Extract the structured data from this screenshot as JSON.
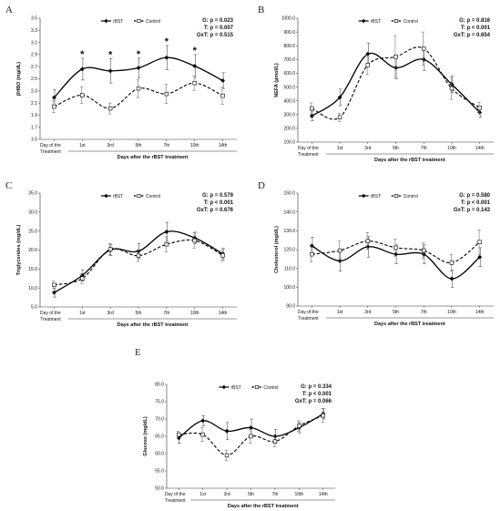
{
  "chart_data": [
    {
      "letter": "A",
      "type": "line",
      "ylabel": "βHBO (mg/dL)",
      "xlabel": "Days after the rBST treatment",
      "categories": [
        "Day of the Treatment",
        "1st",
        "3rd",
        "5th",
        "7th",
        "10th",
        "14th"
      ],
      "ylim": [
        1.5,
        3.5
      ],
      "yticks": [
        1.5,
        1.7,
        1.9,
        2.1,
        2.3,
        2.5,
        2.7,
        2.9,
        3.1,
        3.3,
        3.5
      ],
      "ydecimals": 1,
      "stats": [
        "G: p = 0.023",
        "T: p = 0.007",
        "GxT: p = 0.515"
      ],
      "series": [
        {
          "name": "rBST",
          "values": [
            2.19,
            2.66,
            2.63,
            2.68,
            2.85,
            2.71,
            2.47
          ],
          "errors": [
            0.13,
            0.18,
            0.2,
            0.16,
            0.2,
            0.19,
            0.13
          ]
        },
        {
          "name": "Control",
          "values": [
            2.04,
            2.23,
            2.01,
            2.34,
            2.25,
            2.43,
            2.22
          ],
          "errors": [
            0.1,
            0.14,
            0.09,
            0.15,
            0.16,
            0.12,
            0.14
          ]
        }
      ],
      "annotations": [
        {
          "index": 1,
          "text": "*"
        },
        {
          "index": 2,
          "text": "*"
        },
        {
          "index": 3,
          "text": "*"
        },
        {
          "index": 4,
          "text": "*"
        },
        {
          "index": 5,
          "text": "*"
        }
      ]
    },
    {
      "letter": "B",
      "type": "line",
      "ylabel": "NEFA (µmol/L)",
      "xlabel": "Days after the rBST treatment",
      "categories": [
        "Day of the Treatment",
        "1st",
        "3rd",
        "5th",
        "7th",
        "10th",
        "14th"
      ],
      "ylim": [
        100,
        1000
      ],
      "yticks": [
        100,
        200,
        300,
        400,
        500,
        600,
        700,
        800,
        900,
        1000
      ],
      "ydecimals": 1,
      "stats": [
        "G: p = 0.816",
        "T: p < 0.001",
        "GxT: p = 0.654"
      ],
      "series": [
        {
          "name": "rBST",
          "values": [
            290,
            425,
            740,
            640,
            700,
            520,
            315
          ],
          "errors": [
            35,
            60,
            80,
            80,
            80,
            60,
            35
          ]
        },
        {
          "name": "Control",
          "values": [
            345,
            280,
            660,
            720,
            780,
            490,
            350
          ],
          "errors": [
            40,
            30,
            70,
            150,
            120,
            80,
            40
          ]
        }
      ],
      "annotations": []
    },
    {
      "letter": "C",
      "type": "line",
      "ylabel": "Triglycerides (mg/dL)",
      "xlabel": "Days after the rBST treatment",
      "categories": [
        "Day of the Treatment",
        "1st",
        "3rd",
        "5th",
        "7th",
        "10th",
        "14th"
      ],
      "ylim": [
        5,
        35
      ],
      "yticks": [
        5,
        10,
        15,
        20,
        25,
        30,
        35
      ],
      "ydecimals": 1,
      "stats": [
        "G: p = 0.579",
        "T: p < 0.001",
        "GxT: p = 0.676"
      ],
      "series": [
        {
          "name": "rBST",
          "values": [
            8.8,
            13.3,
            20.0,
            19.7,
            24.8,
            23.2,
            19.0
          ],
          "errors": [
            1.2,
            1.5,
            1.5,
            2.0,
            2.5,
            1.5,
            1.5
          ]
        },
        {
          "name": "Control",
          "values": [
            10.8,
            12.5,
            20.2,
            18.5,
            21.5,
            22.5,
            18.6
          ],
          "errors": [
            1.0,
            1.3,
            1.5,
            1.5,
            2.0,
            2.0,
            1.5
          ]
        }
      ],
      "annotations": []
    },
    {
      "letter": "D",
      "type": "line",
      "ylabel": "Cholesterol (mg/dL)",
      "xlabel": "Days after the rBST treatment",
      "categories": [
        "Day of the Treatment",
        "1st",
        "3rd",
        "5th",
        "7th",
        "10th",
        "14th"
      ],
      "ylim": [
        90,
        150
      ],
      "yticks": [
        90,
        100,
        110,
        120,
        130,
        140,
        150
      ],
      "ydecimals": 1,
      "stats": [
        "G: p = 0.580",
        "T: p < 0.001",
        "GxT: p = 0.143"
      ],
      "series": [
        {
          "name": "rBST",
          "values": [
            122,
            114,
            121.5,
            117.5,
            117.5,
            104.5,
            116
          ],
          "errors": [
            4.5,
            5.5,
            5.5,
            5.0,
            5.0,
            4.5,
            5.0
          ]
        },
        {
          "name": "Control",
          "values": [
            117.5,
            119.5,
            124.5,
            121,
            119.5,
            113,
            124
          ],
          "errors": [
            4,
            5,
            4.5,
            4.5,
            4,
            4.5,
            6.5
          ]
        }
      ],
      "annotations": []
    },
    {
      "letter": "E",
      "type": "line",
      "ylabel": "Glucose (mg/dL)",
      "xlabel": "Days after the rBST treatment",
      "categories": [
        "Day of the Treatment",
        "1st",
        "3rd",
        "5th",
        "7th",
        "10th",
        "14th"
      ],
      "ylim": [
        50,
        80
      ],
      "yticks": [
        50,
        55,
        60,
        65,
        70,
        75,
        80
      ],
      "ydecimals": 1,
      "stats": [
        "G: p = 0.334",
        "T: p < 0.001",
        "GxT: p = 0.066"
      ],
      "series": [
        {
          "name": "rBST",
          "values": [
            64.5,
            69.5,
            66.5,
            67.5,
            65,
            67.5,
            71.5
          ],
          "errors": [
            1.5,
            1.5,
            2.5,
            2.5,
            2.0,
            1.5,
            1.5
          ]
        },
        {
          "name": "Control",
          "values": [
            65.5,
            65.5,
            59.5,
            65,
            63.5,
            68,
            71
          ],
          "errors": [
            1.0,
            2.0,
            1.5,
            2.0,
            1.5,
            1.5,
            2.0
          ]
        }
      ],
      "annotations": []
    }
  ]
}
